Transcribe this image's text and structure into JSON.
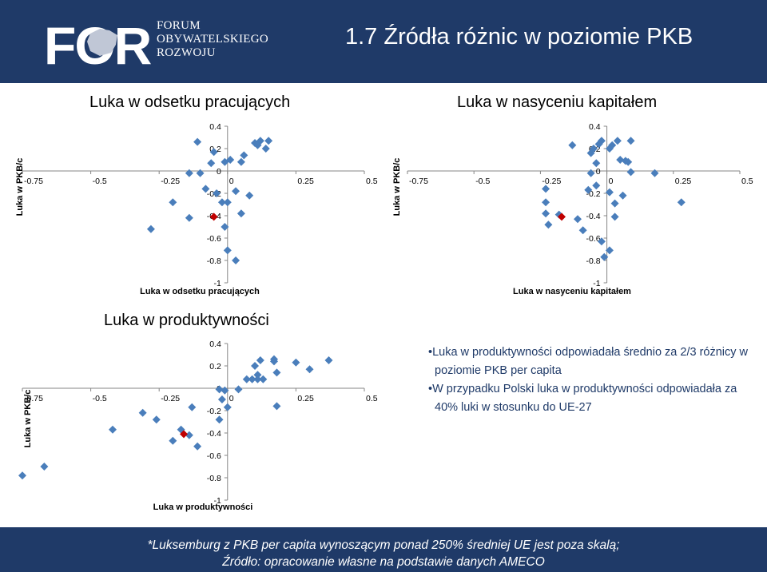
{
  "header": {
    "logo_letters": "FOR",
    "logo_lines": [
      "FORUM",
      "OBYWATELSKIEGO",
      "ROZWOJU"
    ],
    "title": "1.7 Źródła różnic w poziomie PKB"
  },
  "text_box": {
    "bullets": [
      "Luka w produktywności odpowiadała średnio za 2/3 różnicy w poziomie PKB per capita",
      "W przypadku Polski luka w produktywności odpowiadała za 40% luki w stosunku do UE-27"
    ]
  },
  "footer": {
    "line1": "*Luksemburg z  PKB per capita wynoszącym ponad 250% średniej UE jest poza skalą;",
    "line2": "Źródło: opracowanie własne na podstawie danych AMECO"
  },
  "colors": {
    "header_bg": "#1f3a68",
    "marker": "#4a7ebb",
    "marker_highlight": "#c00000",
    "axis": "#868686",
    "text_blue": "#1f3a68"
  },
  "chart_data": [
    {
      "type": "scatter",
      "title": "Luka w odsetku pracujących",
      "xlabel": "Luka w odsetku pracujących",
      "ylabel": "Luka w PKB/c",
      "xlim": [
        -0.75,
        0.5
      ],
      "ylim": [
        -1,
        0.4
      ],
      "xticks": [
        -0.75,
        -0.5,
        -0.25,
        0,
        0.25,
        0.5
      ],
      "yticks": [
        0.4,
        0.2,
        0,
        -0.2,
        -0.4,
        -0.6,
        -0.8,
        -1
      ],
      "xtick_labels": [
        "-0.75",
        "-0.5",
        "-0.25",
        "0",
        "0.25",
        "0.5"
      ],
      "ytick_labels": [
        "0.4",
        "0.2",
        "0",
        "-0.2",
        "-0.4",
        "-0.6",
        "-0.8",
        "-1"
      ],
      "grid": false,
      "legend": "none",
      "points": [
        [
          -0.28,
          -0.52
        ],
        [
          -0.2,
          -0.28
        ],
        [
          -0.14,
          -0.42
        ],
        [
          -0.14,
          -0.02
        ],
        [
          -0.11,
          0.26
        ],
        [
          -0.1,
          -0.02
        ],
        [
          -0.08,
          -0.16
        ],
        [
          -0.06,
          0.07
        ],
        [
          -0.05,
          0.17
        ],
        [
          -0.04,
          -0.2
        ],
        [
          -0.02,
          -0.28
        ],
        [
          -0.01,
          -0.5
        ],
        [
          0.0,
          -0.28
        ],
        [
          0.0,
          -0.71
        ],
        [
          -0.01,
          0.08
        ],
        [
          0.01,
          0.1
        ],
        [
          0.03,
          -0.8
        ],
        [
          0.03,
          -0.18
        ],
        [
          0.05,
          -0.38
        ],
        [
          0.05,
          0.08
        ],
        [
          0.06,
          0.14
        ],
        [
          0.08,
          -0.22
        ],
        [
          0.1,
          0.25
        ],
        [
          0.11,
          0.23
        ],
        [
          0.12,
          0.27
        ],
        [
          0.14,
          0.2
        ],
        [
          0.15,
          0.27
        ]
      ],
      "highlight": [
        [
          -0.05,
          -0.41
        ]
      ]
    },
    {
      "type": "scatter",
      "title": "Luka w nasyceniu kapitałem",
      "xlabel": "Luka w nasyceniu kapitałem",
      "ylabel": "Luka w PKB/c",
      "xlim": [
        -0.75,
        0.5
      ],
      "ylim": [
        -1,
        0.4
      ],
      "xticks": [
        -0.75,
        -0.5,
        -0.25,
        0,
        0.25,
        0.5
      ],
      "yticks": [
        0.4,
        0.2,
        0,
        -0.2,
        -0.4,
        -0.6,
        -0.8,
        -1
      ],
      "xtick_labels": [
        "-0.75",
        "-0.5",
        "-0.25",
        "0",
        "0.25",
        "0.5"
      ],
      "ytick_labels": [
        "0.4",
        "0.2",
        "0",
        "-0.2",
        "-0.4",
        "-0.6",
        "-0.8",
        "-1"
      ],
      "grid": false,
      "legend": "none",
      "points": [
        [
          -0.23,
          -0.16
        ],
        [
          -0.23,
          -0.28
        ],
        [
          -0.23,
          -0.38
        ],
        [
          -0.22,
          -0.48
        ],
        [
          -0.18,
          -0.39
        ],
        [
          -0.13,
          0.23
        ],
        [
          -0.11,
          -0.43
        ],
        [
          -0.09,
          -0.53
        ],
        [
          -0.07,
          -0.17
        ],
        [
          -0.06,
          -0.02
        ],
        [
          -0.06,
          0.16
        ],
        [
          -0.05,
          0.2
        ],
        [
          -0.04,
          -0.13
        ],
        [
          -0.04,
          0.07
        ],
        [
          -0.03,
          0.24
        ],
        [
          -0.02,
          -0.63
        ],
        [
          -0.02,
          0.27
        ],
        [
          -0.01,
          -0.77
        ],
        [
          0.01,
          -0.71
        ],
        [
          0.01,
          -0.19
        ],
        [
          0.01,
          0.2
        ],
        [
          0.02,
          0.23
        ],
        [
          0.03,
          -0.29
        ],
        [
          0.03,
          -0.41
        ],
        [
          0.04,
          0.27
        ],
        [
          0.05,
          0.1
        ],
        [
          0.06,
          -0.22
        ],
        [
          0.07,
          0.09
        ],
        [
          0.08,
          0.08
        ],
        [
          0.09,
          0.27
        ],
        [
          0.09,
          -0.01
        ],
        [
          0.18,
          -0.02
        ],
        [
          0.28,
          -0.28
        ]
      ],
      "highlight": [
        [
          -0.17,
          -0.41
        ]
      ]
    },
    {
      "type": "scatter",
      "title": "Luka w produktywności",
      "xlabel": "Luka w produktywności",
      "ylabel": "Luka w PKB/c",
      "xlim": [
        -0.75,
        0.5
      ],
      "ylim": [
        -1,
        0.4
      ],
      "xticks": [
        -0.75,
        -0.5,
        -0.25,
        0,
        0.25,
        0.5
      ],
      "yticks": [
        0.4,
        0.2,
        0,
        -0.2,
        -0.4,
        -0.6,
        -0.8,
        -1
      ],
      "xtick_labels": [
        "-0.75",
        "-0.5",
        "-0.25",
        "0",
        "0.25",
        "0.5"
      ],
      "ytick_labels": [
        "0.4",
        "0.2",
        "0",
        "-0.2",
        "-0.4",
        "-0.6",
        "-0.8",
        "-1"
      ],
      "grid": false,
      "legend": "none",
      "points": [
        [
          -0.75,
          -0.78
        ],
        [
          -0.67,
          -0.7
        ],
        [
          -0.42,
          -0.37
        ],
        [
          -0.31,
          -0.22
        ],
        [
          -0.26,
          -0.28
        ],
        [
          -0.2,
          -0.47
        ],
        [
          -0.17,
          -0.37
        ],
        [
          -0.14,
          -0.42
        ],
        [
          -0.13,
          -0.17
        ],
        [
          -0.11,
          -0.52
        ],
        [
          -0.03,
          -0.01
        ],
        [
          -0.03,
          -0.28
        ],
        [
          -0.02,
          -0.1
        ],
        [
          -0.01,
          -0.02
        ],
        [
          0.0,
          -0.17
        ],
        [
          0.04,
          -0.01
        ],
        [
          0.07,
          0.08
        ],
        [
          0.09,
          0.08
        ],
        [
          0.1,
          0.2
        ],
        [
          0.11,
          0.12
        ],
        [
          0.11,
          0.08
        ],
        [
          0.12,
          0.25
        ],
        [
          0.13,
          0.08
        ],
        [
          0.17,
          0.24
        ],
        [
          0.17,
          0.26
        ],
        [
          0.18,
          0.14
        ],
        [
          0.18,
          -0.16
        ],
        [
          0.25,
          0.23
        ],
        [
          0.3,
          0.17
        ],
        [
          0.37,
          0.25
        ]
      ],
      "highlight": [
        [
          -0.16,
          -0.41
        ]
      ]
    }
  ]
}
